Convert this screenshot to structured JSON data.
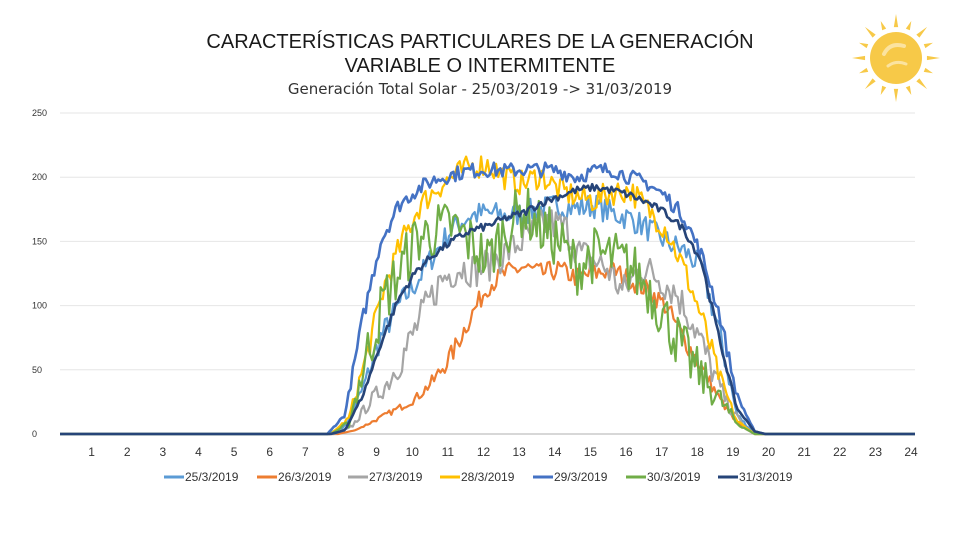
{
  "slide": {
    "title_line1": "CARACTERÍSTICAS PARTICULARES DE LA GENERACIÓN",
    "title_line2": "VARIABLE O INTERMITENTE"
  },
  "chart_data": {
    "type": "line",
    "title": "Generación Total Solar - 25/03/2019 -> 31/03/2019",
    "xlabel": "",
    "ylabel": "",
    "xlim": [
      0,
      24
    ],
    "ylim": [
      0,
      250
    ],
    "yticks": [
      0,
      50,
      100,
      150,
      200,
      250
    ],
    "xticks": [
      1,
      2,
      3,
      4,
      5,
      6,
      7,
      8,
      9,
      10,
      11,
      12,
      13,
      14,
      15,
      16,
      17,
      18,
      19,
      20,
      21,
      22,
      23,
      24
    ],
    "grid": "horizontal",
    "legend_position": "bottom",
    "series": [
      {
        "name": "25/3/2019",
        "color": "#5b9bd5",
        "values": [
          [
            0,
            0
          ],
          [
            7.5,
            0
          ],
          [
            8,
            6
          ],
          [
            8.5,
            35
          ],
          [
            9,
            75
          ],
          [
            9.5,
            100
          ],
          [
            10,
            118
          ],
          [
            10.5,
            140
          ],
          [
            11,
            160
          ],
          [
            11.5,
            170
          ],
          [
            12,
            172
          ],
          [
            12.5,
            170
          ],
          [
            13,
            172
          ],
          [
            13.5,
            175
          ],
          [
            14,
            178
          ],
          [
            14.5,
            176
          ],
          [
            15,
            178
          ],
          [
            15.5,
            172
          ],
          [
            16,
            168
          ],
          [
            16.5,
            160
          ],
          [
            17,
            150
          ],
          [
            17.5,
            143
          ],
          [
            18,
            130
          ],
          [
            18.5,
            80
          ],
          [
            19,
            15
          ],
          [
            19.5,
            0
          ],
          [
            24,
            0
          ]
        ]
      },
      {
        "name": "26/3/2019",
        "color": "#ed7d31",
        "values": [
          [
            0,
            0
          ],
          [
            7.8,
            0
          ],
          [
            8.3,
            3
          ],
          [
            8.8,
            10
          ],
          [
            9.5,
            20
          ],
          [
            10,
            28
          ],
          [
            10.5,
            42
          ],
          [
            11,
            62
          ],
          [
            11.5,
            90
          ],
          [
            12,
            115
          ],
          [
            12.5,
            125
          ],
          [
            13,
            130
          ],
          [
            13.5,
            125
          ],
          [
            14,
            128
          ],
          [
            14.5,
            122
          ],
          [
            15,
            125
          ],
          [
            15.5,
            128
          ],
          [
            16,
            120
          ],
          [
            16.5,
            112
          ],
          [
            17,
            100
          ],
          [
            17.5,
            75
          ],
          [
            18,
            52
          ],
          [
            18.5,
            28
          ],
          [
            19,
            8
          ],
          [
            19.5,
            0
          ],
          [
            24,
            0
          ]
        ]
      },
      {
        "name": "27/3/2019",
        "color": "#a5a5a5",
        "values": [
          [
            0,
            0
          ],
          [
            7.7,
            0
          ],
          [
            8.2,
            6
          ],
          [
            8.7,
            25
          ],
          [
            9.2,
            40
          ],
          [
            9.7,
            65
          ],
          [
            10.2,
            95
          ],
          [
            10.7,
            120
          ],
          [
            11.2,
            130
          ],
          [
            11.7,
            128
          ],
          [
            12.2,
            135
          ],
          [
            12.7,
            145
          ],
          [
            13.2,
            155
          ],
          [
            13.7,
            165
          ],
          [
            14.2,
            160
          ],
          [
            14.6,
            140
          ],
          [
            15,
            135
          ],
          [
            15.4,
            128
          ],
          [
            15.8,
            110
          ],
          [
            16.3,
            130
          ],
          [
            16.8,
            122
          ],
          [
            17.3,
            110
          ],
          [
            17.8,
            85
          ],
          [
            18.3,
            50
          ],
          [
            18.8,
            20
          ],
          [
            19.3,
            3
          ],
          [
            19.6,
            0
          ],
          [
            24,
            0
          ]
        ]
      },
      {
        "name": "28/3/2019",
        "color": "#ffc000",
        "values": [
          [
            0,
            0
          ],
          [
            7.6,
            0
          ],
          [
            8.1,
            12
          ],
          [
            8.6,
            60
          ],
          [
            9.1,
            115
          ],
          [
            9.6,
            150
          ],
          [
            10.1,
            178
          ],
          [
            10.6,
            192
          ],
          [
            11,
            200
          ],
          [
            11.5,
            208
          ],
          [
            12,
            210
          ],
          [
            12.5,
            200
          ],
          [
            13,
            195
          ],
          [
            13.5,
            202
          ],
          [
            14,
            190
          ],
          [
            14.5,
            185
          ],
          [
            15,
            182
          ],
          [
            15.5,
            188
          ],
          [
            16,
            190
          ],
          [
            16.5,
            175
          ],
          [
            17,
            160
          ],
          [
            17.5,
            130
          ],
          [
            18,
            92
          ],
          [
            18.5,
            45
          ],
          [
            19,
            10
          ],
          [
            19.5,
            0
          ],
          [
            24,
            0
          ]
        ]
      },
      {
        "name": "29/3/2019",
        "color": "#4472c4",
        "values": [
          [
            0,
            0
          ],
          [
            7.5,
            0
          ],
          [
            8,
            15
          ],
          [
            8.5,
            90
          ],
          [
            9,
            150
          ],
          [
            9.5,
            178
          ],
          [
            10,
            190
          ],
          [
            10.5,
            198
          ],
          [
            11,
            202
          ],
          [
            11.5,
            205
          ],
          [
            12,
            206
          ],
          [
            12.5,
            205
          ],
          [
            13,
            206
          ],
          [
            13.5,
            206
          ],
          [
            14,
            205
          ],
          [
            14.5,
            200
          ],
          [
            15,
            205
          ],
          [
            15.5,
            206
          ],
          [
            16,
            200
          ],
          [
            16.5,
            195
          ],
          [
            17,
            185
          ],
          [
            17.5,
            170
          ],
          [
            18,
            140
          ],
          [
            18.5,
            95
          ],
          [
            19,
            30
          ],
          [
            19.5,
            2
          ],
          [
            19.8,
            0
          ],
          [
            24,
            0
          ]
        ]
      },
      {
        "name": "30/3/2019",
        "color": "#70ad47",
        "values": [
          [
            0,
            0
          ],
          [
            7.6,
            0
          ],
          [
            8.1,
            8
          ],
          [
            8.6,
            60
          ],
          [
            9.1,
            105
          ],
          [
            9.6,
            130
          ],
          [
            10,
            152
          ],
          [
            10.5,
            158
          ],
          [
            11,
            162
          ],
          [
            11.5,
            150
          ],
          [
            12,
            135
          ],
          [
            12.5,
            160
          ],
          [
            13,
            175
          ],
          [
            13.5,
            160
          ],
          [
            14,
            150
          ],
          [
            14.5,
            130
          ],
          [
            15,
            140
          ],
          [
            15.5,
            138
          ],
          [
            16,
            130
          ],
          [
            16.5,
            115
          ],
          [
            17,
            90
          ],
          [
            17.5,
            65
          ],
          [
            18,
            45
          ],
          [
            18.5,
            28
          ],
          [
            19,
            8
          ],
          [
            19.5,
            0
          ],
          [
            24,
            0
          ]
        ]
      },
      {
        "name": "31/3/2019",
        "color": "#264478",
        "values": [
          [
            0,
            0
          ],
          [
            7.6,
            0
          ],
          [
            8,
            3
          ],
          [
            8.5,
            30
          ],
          [
            9,
            70
          ],
          [
            9.5,
            105
          ],
          [
            10,
            127
          ],
          [
            10.5,
            140
          ],
          [
            11,
            150
          ],
          [
            11.5,
            158
          ],
          [
            12,
            162
          ],
          [
            12.5,
            168
          ],
          [
            13,
            172
          ],
          [
            13.5,
            180
          ],
          [
            14,
            185
          ],
          [
            14.5,
            190
          ],
          [
            15,
            192
          ],
          [
            15.5,
            190
          ],
          [
            16,
            186
          ],
          [
            16.5,
            180
          ],
          [
            17,
            172
          ],
          [
            17.5,
            160
          ],
          [
            18,
            135
          ],
          [
            18.5,
            75
          ],
          [
            19,
            20
          ],
          [
            19.5,
            2
          ],
          [
            19.8,
            0
          ],
          [
            24,
            0
          ]
        ]
      }
    ]
  },
  "icons": {
    "sun": "sun-icon"
  }
}
